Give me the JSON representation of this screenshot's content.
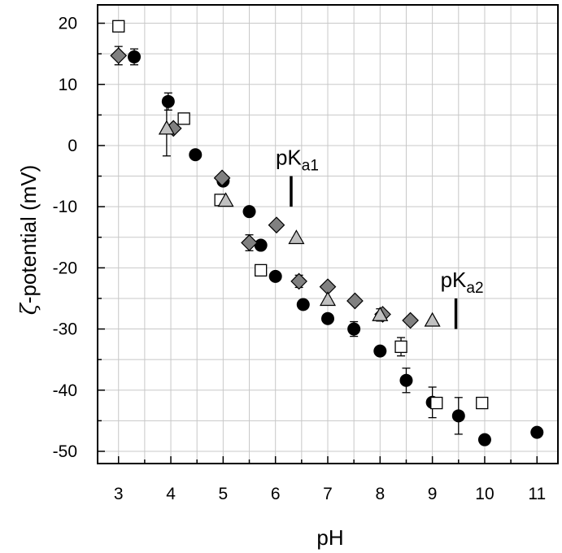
{
  "chart_data": {
    "type": "scatter",
    "title": "",
    "xlabel": "pH",
    "ylabel_symbol": "ζ",
    "ylabel": "-potential (mV)",
    "xlim": [
      2.6,
      11.4
    ],
    "ylim": [
      -52,
      23
    ],
    "xticks": [
      3,
      4,
      5,
      6,
      7,
      8,
      9,
      10,
      11
    ],
    "yticks": [
      20,
      10,
      0,
      -10,
      -20,
      -30,
      -40,
      -50
    ],
    "grid": true,
    "colors": {
      "circle": "#000000",
      "square": "#ffffff",
      "diamond": "#808080",
      "triangle": "#c0c0c0"
    },
    "series": [
      {
        "name": "filled circles",
        "marker": "circle",
        "points": [
          {
            "x": 3.3,
            "y": 14.5,
            "err": 1.3
          },
          {
            "x": 3.95,
            "y": 7.2,
            "err": 1.4
          },
          {
            "x": 4.47,
            "y": -1.5
          },
          {
            "x": 5.0,
            "y": -5.8
          },
          {
            "x": 5.5,
            "y": -10.8
          },
          {
            "x": 5.72,
            "y": -16.3
          },
          {
            "x": 6.0,
            "y": -21.4
          },
          {
            "x": 6.53,
            "y": -26.0
          },
          {
            "x": 7.0,
            "y": -28.3
          },
          {
            "x": 7.5,
            "y": -30.0,
            "err": 1.2
          },
          {
            "x": 8.0,
            "y": -33.6
          },
          {
            "x": 8.5,
            "y": -38.4,
            "err": 2.0
          },
          {
            "x": 9.0,
            "y": -42.0,
            "err": 2.5
          },
          {
            "x": 9.5,
            "y": -44.2,
            "err": 3.0
          },
          {
            "x": 10.0,
            "y": -48.1
          },
          {
            "x": 11.0,
            "y": -46.9
          }
        ]
      },
      {
        "name": "open squares",
        "marker": "square",
        "points": [
          {
            "x": 3.0,
            "y": 19.5
          },
          {
            "x": 4.25,
            "y": 4.4
          },
          {
            "x": 4.95,
            "y": -8.9
          },
          {
            "x": 5.72,
            "y": -20.4
          },
          {
            "x": 8.4,
            "y": -32.9,
            "err": 1.5
          },
          {
            "x": 9.08,
            "y": -42.1
          },
          {
            "x": 9.95,
            "y": -42.1
          }
        ]
      },
      {
        "name": "gray diamonds",
        "marker": "diamond",
        "points": [
          {
            "x": 3.0,
            "y": 14.7,
            "err": 1.5
          },
          {
            "x": 4.05,
            "y": 2.8
          },
          {
            "x": 4.98,
            "y": -5.3
          },
          {
            "x": 5.5,
            "y": -15.9,
            "err": 1.3
          },
          {
            "x": 6.02,
            "y": -13.0
          },
          {
            "x": 6.45,
            "y": -22.2,
            "err": 1.0
          },
          {
            "x": 7.0,
            "y": -23.1
          },
          {
            "x": 7.52,
            "y": -25.4
          },
          {
            "x": 8.05,
            "y": -27.6
          },
          {
            "x": 8.58,
            "y": -28.6
          }
        ]
      },
      {
        "name": "gray triangles",
        "marker": "triangle",
        "points": [
          {
            "x": 3.92,
            "y": 2.8,
            "err": 4.5
          },
          {
            "x": 5.05,
            "y": -9.0
          },
          {
            "x": 6.4,
            "y": -15.1
          },
          {
            "x": 7.0,
            "y": -25.2
          },
          {
            "x": 8.0,
            "y": -27.7,
            "err": 1.0
          },
          {
            "x": 9.0,
            "y": -28.6
          }
        ]
      }
    ],
    "annotations": [
      {
        "main": "pK",
        "sub": "a1",
        "line_x": 6.3,
        "line_y": [
          -5.0,
          -10.0
        ]
      },
      {
        "main": "pK",
        "sub": "a2",
        "line_x": 9.45,
        "line_y": [
          -25.0,
          -30.0
        ]
      }
    ]
  }
}
